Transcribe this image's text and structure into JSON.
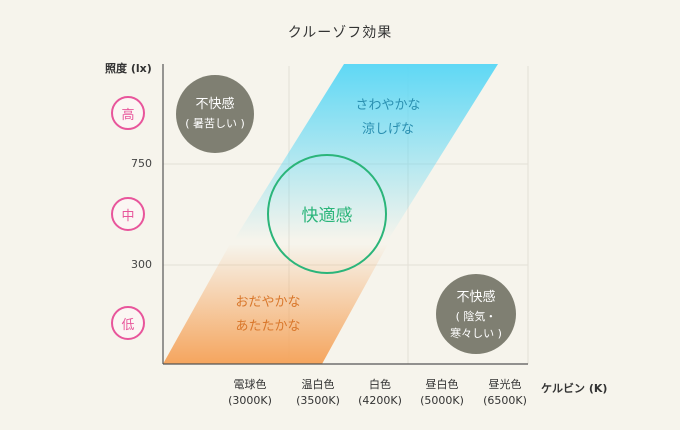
{
  "title": "クルーゾフ効果",
  "y_axis": {
    "label": "照度 (lx)",
    "ticks": [
      "750",
      "300"
    ],
    "levels": [
      "高",
      "中",
      "低"
    ]
  },
  "x_axis": {
    "label": "ケルビン (K)",
    "ticks": [
      {
        "name": "電球色",
        "value": "(3000K)"
      },
      {
        "name": "温白色",
        "value": "(3500K)"
      },
      {
        "name": "白色",
        "value": "(4200K)"
      },
      {
        "name": "昼白色",
        "value": "(5000K)"
      },
      {
        "name": "昼光色",
        "value": "(6500K)"
      }
    ]
  },
  "regions": {
    "cool": {
      "line1": "さわやかな",
      "line2": "涼しげな",
      "color": "#2a8fb0"
    },
    "warm": {
      "line1": "おだやかな",
      "line2": "あたたかな",
      "color": "#d9772b"
    },
    "comfort": {
      "label": "快適感",
      "color": "#2bb57a"
    },
    "uncomfortable_hot": {
      "line1": "不快感",
      "line2": "( 暑苦しい )",
      "color": "#7f7f72"
    },
    "uncomfortable_dim": {
      "line1": "不快感",
      "line2": "( 陰気・",
      "line3": "寒々しい )",
      "color": "#7f7f72"
    }
  },
  "colors": {
    "accent_pink": "#e8559b",
    "cool_gradient": "#5fd8f5",
    "warm_gradient": "#f5a55e"
  }
}
